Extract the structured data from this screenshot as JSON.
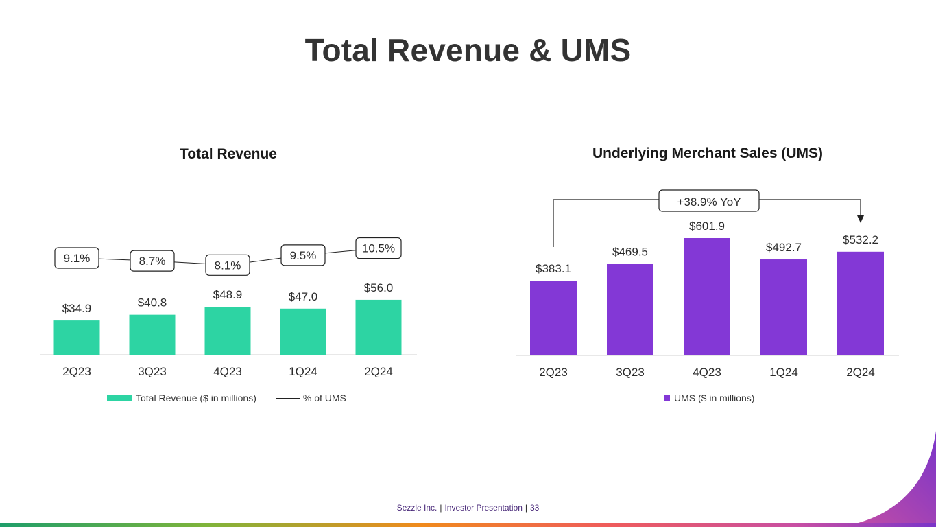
{
  "page": {
    "title": "Total Revenue & UMS",
    "footer": {
      "company": "Sezzle Inc.",
      "presentation": "Investor Presentation",
      "page_number": "33"
    }
  },
  "colors": {
    "revenue": "#2dd4a3",
    "ums": "#8338d6",
    "line": "#222222",
    "axis": "#d0d0d0"
  },
  "chart_data": [
    {
      "type": "bar",
      "title": "Total Revenue",
      "categories": [
        "2Q23",
        "3Q23",
        "4Q23",
        "1Q24",
        "2Q24"
      ],
      "values": [
        34.9,
        40.8,
        48.9,
        47.0,
        56.0
      ],
      "value_labels": [
        "$34.9",
        "$40.8",
        "$48.9",
        "$47.0",
        "$56.0"
      ],
      "series": [
        {
          "name": "Total Revenue ($ in millions)",
          "type": "bar",
          "values": [
            34.9,
            40.8,
            48.9,
            47.0,
            56.0
          ]
        },
        {
          "name": "% of UMS",
          "type": "line",
          "values": [
            9.1,
            8.7,
            8.1,
            9.5,
            10.5
          ],
          "labels": [
            "9.1%",
            "8.7%",
            "8.1%",
            "9.5%",
            "10.5%"
          ]
        }
      ],
      "legend": [
        "Total Revenue ($ in millions)",
        "% of UMS"
      ],
      "ylim": [
        0,
        100
      ]
    },
    {
      "type": "bar",
      "title": "Underlying Merchant Sales (UMS)",
      "categories": [
        "2Q23",
        "3Q23",
        "4Q23",
        "1Q24",
        "2Q24"
      ],
      "values": [
        383.1,
        469.5,
        601.9,
        492.7,
        532.2
      ],
      "value_labels": [
        "$383.1",
        "$469.5",
        "$601.9",
        "$492.7",
        "$532.2"
      ],
      "series": [
        {
          "name": "UMS ($ in millions)",
          "values": [
            383.1,
            469.5,
            601.9,
            492.7,
            532.2
          ]
        }
      ],
      "legend": [
        "UMS ($ in millions)"
      ],
      "annotation": "+38.9% YoY",
      "ylim": [
        0,
        601.9
      ]
    }
  ]
}
